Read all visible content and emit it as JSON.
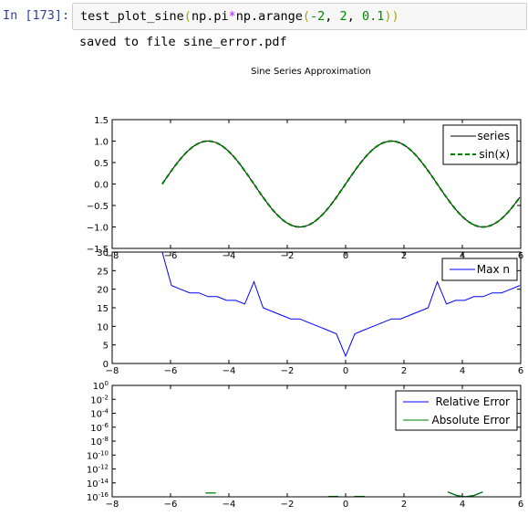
{
  "cell": {
    "prompt": "In [173]:",
    "code_tokens": [
      {
        "t": "test_plot_sine",
        "c": "fn"
      },
      {
        "t": "(",
        "c": "paren"
      },
      {
        "t": "np.pi",
        "c": "fn"
      },
      {
        "t": "*",
        "c": "op"
      },
      {
        "t": "np.arange",
        "c": "fn"
      },
      {
        "t": "(",
        "c": "paren"
      },
      {
        "t": "-2",
        "c": "num"
      },
      {
        "t": ", ",
        "c": "punct"
      },
      {
        "t": "2",
        "c": "num"
      },
      {
        "t": ", ",
        "c": "punct"
      },
      {
        "t": "0.1",
        "c": "num"
      },
      {
        "t": "))",
        "c": "paren"
      }
    ],
    "output_text": "saved to file sine_error.pdf"
  },
  "figure_title": "Sine Series Approximation",
  "colors": {
    "series": "#000000",
    "sin": "#008000",
    "max_n": "#0000ff",
    "rel_err": "#0000ff",
    "abs_err": "#008000",
    "prompt": "#303f9f"
  },
  "chart_data": [
    {
      "type": "line",
      "title": "",
      "xlim": [
        -8,
        6
      ],
      "ylim": [
        -1.5,
        1.5
      ],
      "x_ticks": [
        "−8",
        "−6",
        "−4",
        "−2",
        "0",
        "2",
        "4",
        "6"
      ],
      "y_ticks": [
        "−1.5",
        "−1.0",
        "−0.5",
        "0.0",
        "0.5",
        "1.0",
        "1.5"
      ],
      "legend": {
        "position": "top-right",
        "entries": [
          "series",
          "sin(x)"
        ]
      },
      "series": [
        {
          "name": "series",
          "x_start": -6.2832,
          "x_end": 6.0,
          "function": "sin(x)",
          "style": "solid",
          "color": "#000000"
        },
        {
          "name": "sin(x)",
          "x_start": -6.2832,
          "x_end": 6.0,
          "function": "sin(x)",
          "style": "dashed",
          "color": "#008000"
        }
      ]
    },
    {
      "type": "line",
      "title": "",
      "xlim": [
        -8,
        6
      ],
      "ylim": [
        0,
        30
      ],
      "x_ticks": [
        "−8",
        "−6",
        "−4",
        "−2",
        "0",
        "2",
        "4",
        "6"
      ],
      "y_ticks": [
        "0",
        "5",
        "10",
        "15",
        "20",
        "25",
        "30"
      ],
      "legend": {
        "position": "top-right",
        "entries": [
          "Max n"
        ]
      },
      "series": [
        {
          "name": "Max n",
          "x": [
            -6.2832,
            -5.969,
            -5.6549,
            -5.3407,
            -5.0265,
            -4.7124,
            -4.3982,
            -4.0841,
            -3.7699,
            -3.4558,
            -3.1416,
            -2.8274,
            -2.5133,
            -2.1991,
            -1.885,
            -1.5708,
            -1.2566,
            -0.9425,
            -0.6283,
            -0.3142,
            0.0,
            0.3142,
            0.6283,
            0.9425,
            1.2566,
            1.5708,
            1.885,
            2.1991,
            2.5133,
            2.8274,
            3.1416,
            3.4558,
            3.7699,
            4.0841,
            4.3982,
            4.7124,
            5.0265,
            5.3407,
            5.6549,
            5.969
          ],
          "values": [
            30,
            21,
            20,
            19,
            19,
            18,
            18,
            17,
            17,
            16,
            22,
            15,
            14,
            13,
            12,
            12,
            11,
            10,
            9,
            8,
            2,
            8,
            9,
            10,
            11,
            12,
            12,
            13,
            14,
            15,
            22,
            16,
            17,
            17,
            18,
            18,
            19,
            19,
            20,
            21
          ]
        }
      ]
    },
    {
      "type": "line",
      "title": "",
      "xlim": [
        -8,
        6
      ],
      "ylim_log10": [
        -16,
        0
      ],
      "y_scale": "log",
      "x_ticks": [
        "−8",
        "−6",
        "−4",
        "−2",
        "0",
        "2",
        "4",
        "6"
      ],
      "y_ticks": [
        {
          "base": "10",
          "exp": "0"
        },
        {
          "base": "10",
          "exp": "-2"
        },
        {
          "base": "10",
          "exp": "-4"
        },
        {
          "base": "10",
          "exp": "-6"
        },
        {
          "base": "10",
          "exp": "-8"
        },
        {
          "base": "10",
          "exp": "-10"
        },
        {
          "base": "10",
          "exp": "-12"
        },
        {
          "base": "10",
          "exp": "-14"
        },
        {
          "base": "10",
          "exp": "-16"
        }
      ],
      "legend": {
        "position": "top-right",
        "entries": [
          "Relative Error",
          "Absolute Error"
        ]
      },
      "series": [
        {
          "name": "Relative Error",
          "segments": [
            [
              [
                3.5,
                -15.3
              ],
              [
                3.8,
                -15.8
              ],
              [
                4.1,
                -16.0
              ],
              [
                4.4,
                -15.8
              ],
              [
                4.7,
                -15.3
              ]
            ]
          ]
        },
        {
          "name": "Absolute Error",
          "segments": [
            [
              [
                -4.8,
                -15.45
              ],
              [
                -4.45,
                -15.45
              ]
            ],
            [
              [
                -0.6,
                -15.95
              ],
              [
                -0.25,
                -15.95
              ]
            ],
            [
              [
                0.3,
                -15.95
              ],
              [
                0.65,
                -15.95
              ]
            ],
            [
              [
                3.5,
                -15.3
              ],
              [
                3.8,
                -15.8
              ],
              [
                4.1,
                -16.0
              ],
              [
                4.4,
                -15.8
              ],
              [
                4.7,
                -15.3
              ]
            ]
          ]
        }
      ]
    }
  ]
}
